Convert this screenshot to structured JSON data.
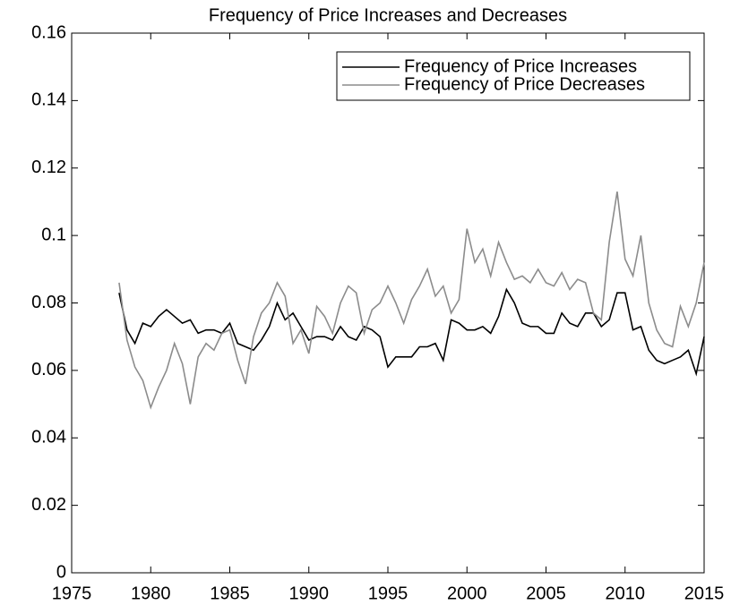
{
  "chart_data": {
    "type": "line",
    "title": "Frequency of Price Increases and Decreases",
    "x": [
      1978,
      1978.5,
      1979,
      1979.5,
      1980,
      1980.5,
      1981,
      1981.5,
      1982,
      1982.5,
      1983,
      1983.5,
      1984,
      1984.5,
      1985,
      1985.5,
      1986,
      1986.5,
      1987,
      1987.5,
      1988,
      1988.5,
      1989,
      1989.5,
      1990,
      1990.5,
      1991,
      1991.5,
      1992,
      1992.5,
      1993,
      1993.5,
      1994,
      1994.5,
      1995,
      1995.5,
      1996,
      1996.5,
      1997,
      1997.5,
      1998,
      1998.5,
      1999,
      1999.5,
      2000,
      2000.5,
      2001,
      2001.5,
      2002,
      2002.5,
      2003,
      2003.5,
      2004,
      2004.5,
      2005,
      2005.5,
      2006,
      2006.5,
      2007,
      2007.5,
      2008,
      2008.5,
      2009,
      2009.5,
      2010,
      2010.5,
      2011,
      2011.5,
      2012,
      2012.5,
      2013,
      2013.5,
      2014,
      2014.5,
      2015
    ],
    "series": [
      {
        "name": "Frequency of Price Increases",
        "color": "#000000",
        "values": [
          0.083,
          0.072,
          0.068,
          0.074,
          0.073,
          0.076,
          0.078,
          0.076,
          0.074,
          0.075,
          0.071,
          0.072,
          0.072,
          0.071,
          0.074,
          0.068,
          0.067,
          0.066,
          0.069,
          0.073,
          0.08,
          0.075,
          0.077,
          0.073,
          0.069,
          0.07,
          0.07,
          0.069,
          0.073,
          0.07,
          0.069,
          0.073,
          0.072,
          0.07,
          0.061,
          0.064,
          0.064,
          0.064,
          0.067,
          0.067,
          0.068,
          0.063,
          0.075,
          0.074,
          0.072,
          0.072,
          0.073,
          0.071,
          0.076,
          0.084,
          0.08,
          0.074,
          0.073,
          0.073,
          0.071,
          0.071,
          0.077,
          0.074,
          0.073,
          0.077,
          0.077,
          0.073,
          0.075,
          0.083,
          0.083,
          0.072,
          0.073,
          0.066,
          0.063,
          0.062,
          0.063,
          0.064,
          0.066,
          0.059,
          0.07
        ]
      },
      {
        "name": "Frequency of Price Decreases",
        "color": "#8c8c8c",
        "values": [
          0.086,
          0.069,
          0.061,
          0.057,
          0.049,
          0.055,
          0.06,
          0.068,
          0.062,
          0.05,
          0.064,
          0.068,
          0.066,
          0.071,
          0.072,
          0.063,
          0.056,
          0.07,
          0.077,
          0.08,
          0.086,
          0.082,
          0.068,
          0.072,
          0.065,
          0.079,
          0.076,
          0.071,
          0.08,
          0.085,
          0.083,
          0.071,
          0.078,
          0.08,
          0.085,
          0.08,
          0.074,
          0.081,
          0.085,
          0.09,
          0.082,
          0.085,
          0.077,
          0.081,
          0.102,
          0.092,
          0.096,
          0.088,
          0.098,
          0.092,
          0.087,
          0.088,
          0.086,
          0.09,
          0.086,
          0.085,
          0.089,
          0.084,
          0.087,
          0.086,
          0.077,
          0.075,
          0.098,
          0.113,
          0.093,
          0.088,
          0.1,
          0.08,
          0.072,
          0.068,
          0.067,
          0.079,
          0.073,
          0.08,
          0.092
        ]
      }
    ],
    "xlim": [
      1975,
      2015
    ],
    "xticks": [
      1975,
      1980,
      1985,
      1990,
      1995,
      2000,
      2005,
      2010,
      2015
    ],
    "ylim": [
      0,
      0.16
    ],
    "yticks": [
      0,
      0.02,
      0.04,
      0.06,
      0.08,
      0.1,
      0.12,
      0.14,
      0.16
    ],
    "legend": "upper right",
    "grid": false
  }
}
